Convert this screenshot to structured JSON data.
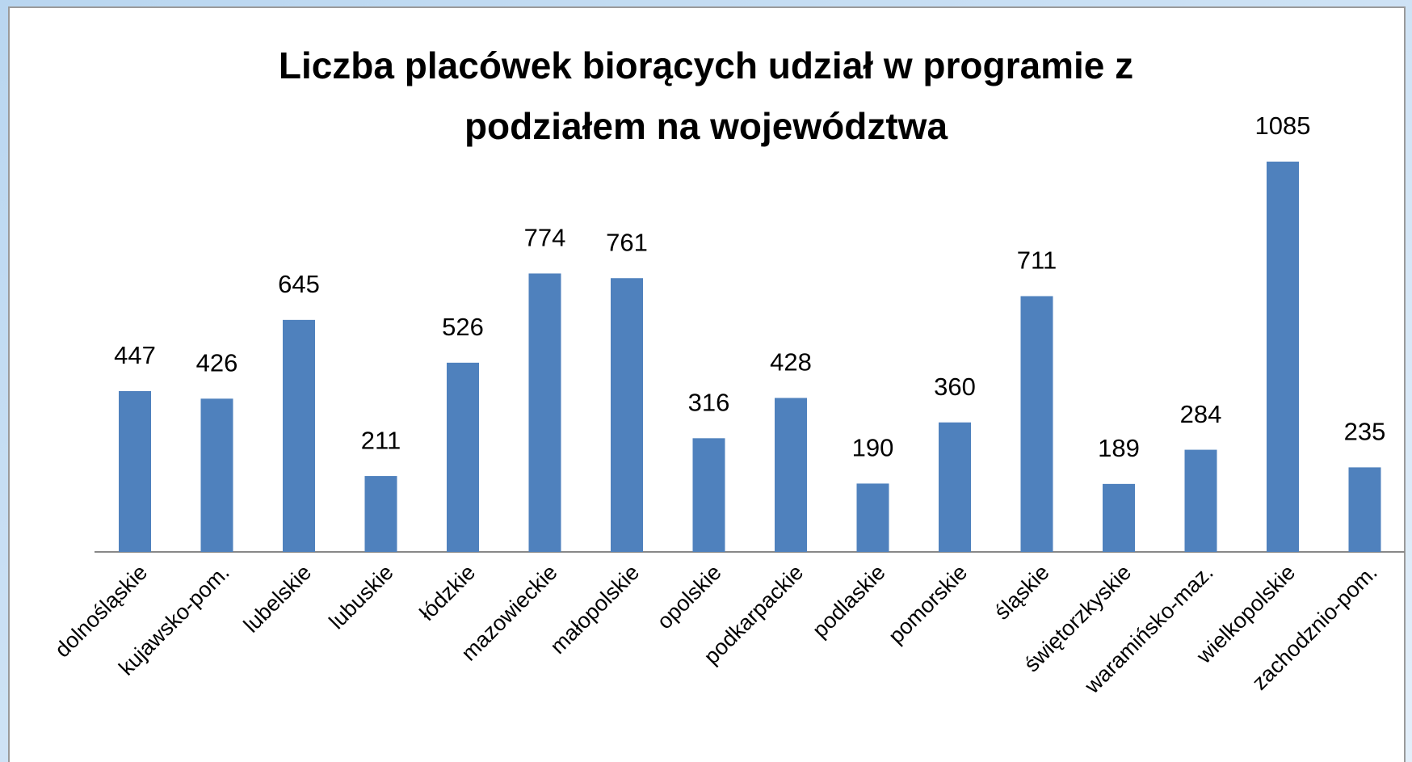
{
  "chart_data": {
    "type": "bar",
    "title": [
      "Liczba placówek biorących udział w programie z",
      "podziałem na województwa"
    ],
    "categories": [
      "dolnośląskie",
      "kujawsko-pom.",
      "lubelskie",
      "lubuskie",
      "łódzkie",
      "mazowieckie",
      "małopolskie",
      "opolskie",
      "podkarpackie",
      "podlaskie",
      "pomorskie",
      "śląskie",
      "świętorzkyskie",
      "waramińsko-maz.",
      "wielkopolskie",
      "zachodznio-pom."
    ],
    "values": [
      447,
      426,
      645,
      211,
      526,
      774,
      761,
      316,
      428,
      190,
      360,
      711,
      189,
      284,
      1085,
      235
    ],
    "color": "#4f81bd"
  }
}
